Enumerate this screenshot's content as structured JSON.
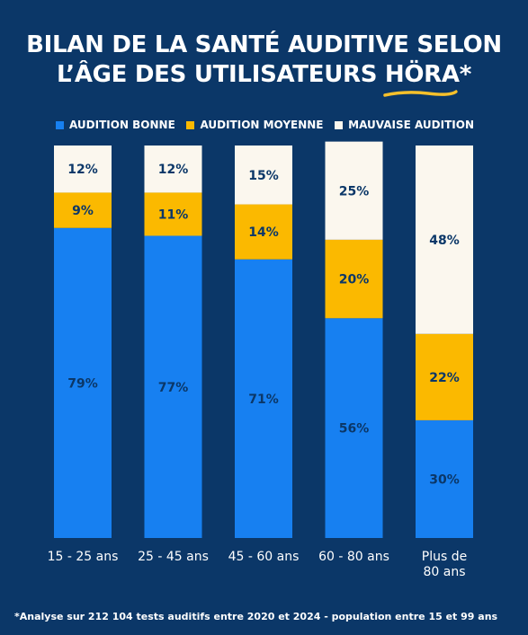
{
  "title": {
    "line1": "BILAN DE LA SANTÉ AUDITIVE SELON",
    "line2_prefix": "L’ÂGE DES UTILISATEURS ",
    "line2_highlight": "HÖRA",
    "line2_suffix": "*"
  },
  "colors": {
    "background": "#0b3768",
    "good": "#1780f1",
    "medium": "#fbb900",
    "bad": "#fbf7ee",
    "label_text": "#0b3768",
    "underline": "#f6c02b"
  },
  "footnote": "*Analyse sur 212 104 tests auditifs entre 2020 et 2024 - population entre 15 et 99 ans",
  "chart_data": {
    "type": "bar",
    "stacked": true,
    "normalized_100": true,
    "categories": [
      [
        "15 - 25 ans"
      ],
      [
        "25 - 45 ans"
      ],
      [
        "45 - 60 ans"
      ],
      [
        "60 - 80 ans"
      ],
      [
        "Plus de",
        "80 ans"
      ]
    ],
    "series": [
      {
        "name": "AUDITION BONNE",
        "color": "#1780f1",
        "values": [
          79,
          77,
          71,
          56,
          30
        ],
        "labels": [
          "79%",
          "77%",
          "71%",
          "56%",
          "30%"
        ]
      },
      {
        "name": "AUDITION MOYENNE",
        "color": "#fbb900",
        "values": [
          9,
          11,
          14,
          20,
          22
        ],
        "labels": [
          "9%",
          "11%",
          "14%",
          "20%",
          "22%"
        ]
      },
      {
        "name": "MAUVAISE AUDITION",
        "color": "#fbf7ee",
        "values": [
          12,
          12,
          15,
          25,
          48
        ],
        "labels": [
          "12%",
          "12%",
          "15%",
          "25%",
          "48%"
        ]
      }
    ],
    "ylim": [
      0,
      100
    ],
    "legend_position": "top",
    "grid": false
  }
}
